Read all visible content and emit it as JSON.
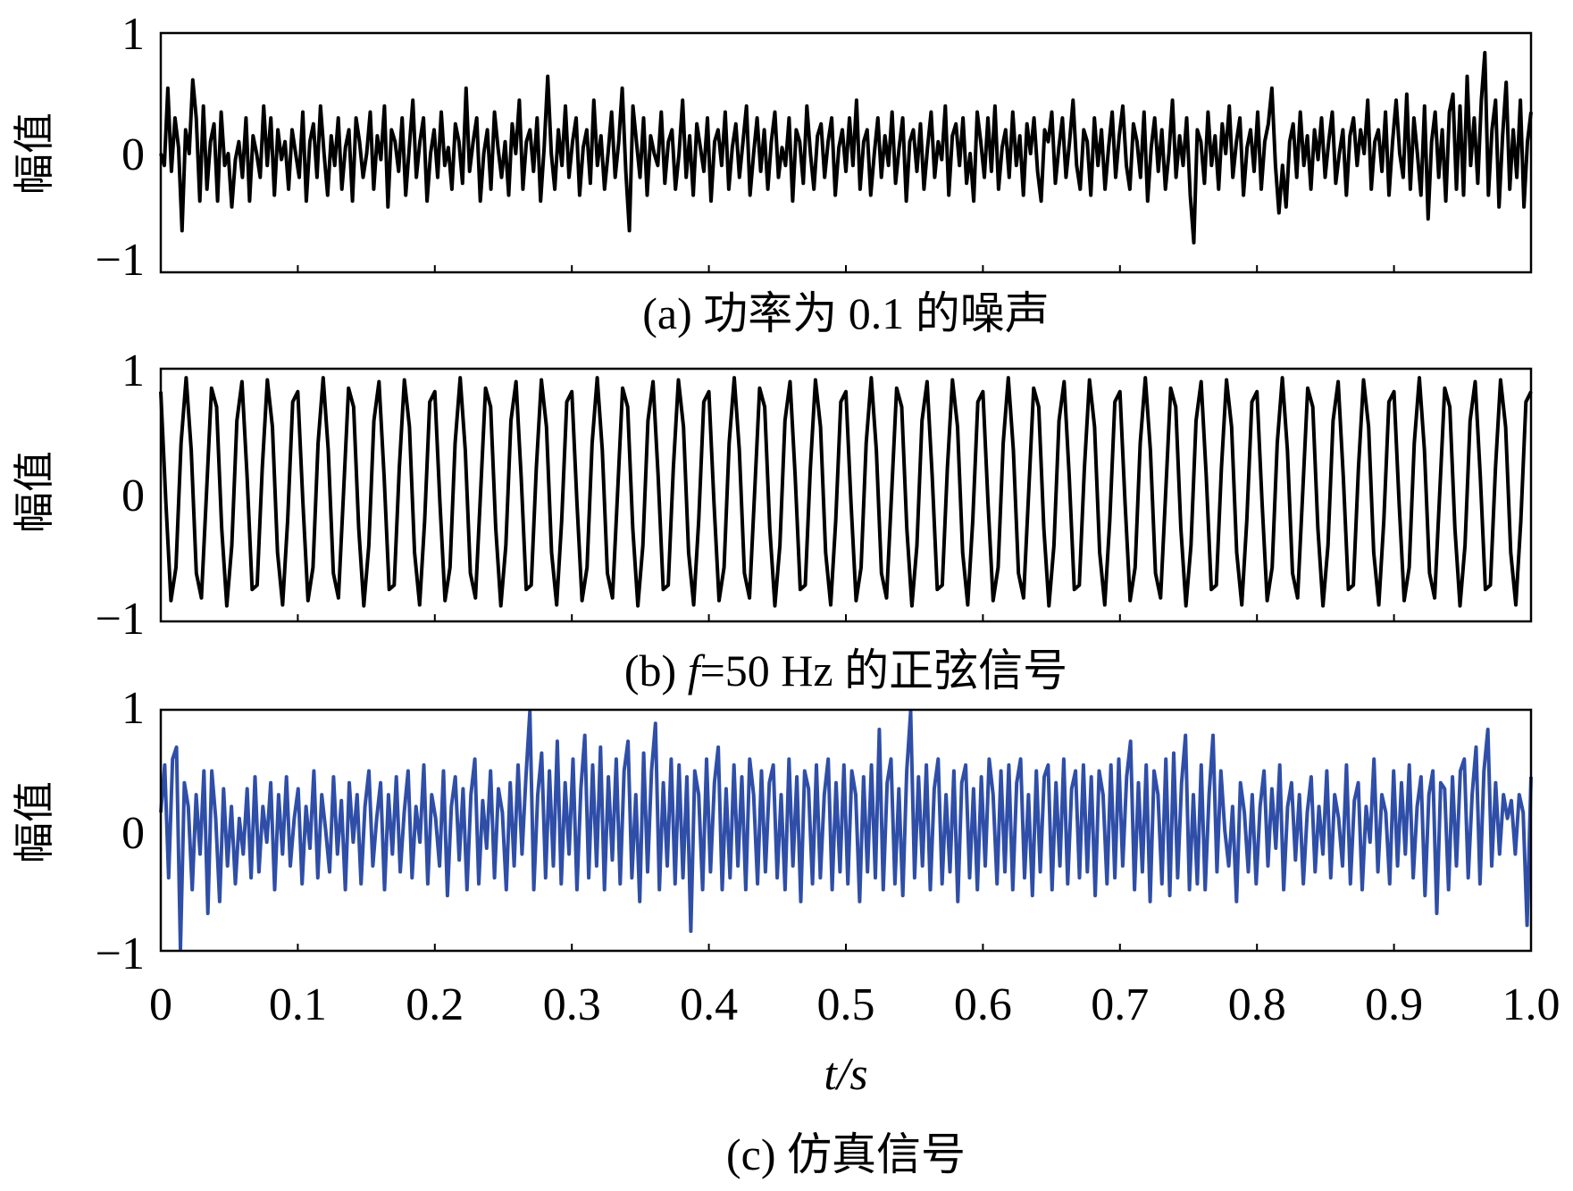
{
  "chart_data": [
    {
      "type": "line",
      "ylabel": "幅值",
      "caption": "(a) 功率为 0.1 的噪声",
      "xlim": [
        0,
        1.0
      ],
      "ylim": [
        -1,
        1
      ],
      "yticks": [
        "1",
        "0",
        "−1"
      ],
      "grid": false,
      "series": [
        {
          "color": "#000000",
          "x_start": 0,
          "x_step": 0.0025,
          "y": [
            0.0,
            -0.1,
            0.55,
            -0.15,
            0.3,
            0.05,
            -0.65,
            0.2,
            0.0,
            0.62,
            0.3,
            -0.4,
            0.4,
            -0.3,
            0.1,
            0.25,
            -0.4,
            0.35,
            -0.1,
            0.0,
            -0.45,
            -0.05,
            0.1,
            -0.2,
            0.3,
            -0.4,
            0.15,
            0.0,
            -0.2,
            0.4,
            -0.1,
            0.3,
            -0.35,
            0.2,
            -0.05,
            0.1,
            -0.3,
            0.2,
            0.0,
            -0.2,
            0.35,
            -0.4,
            0.1,
            0.25,
            -0.2,
            0.4,
            0.0,
            -0.35,
            0.15,
            -0.1,
            0.3,
            -0.3,
            0.05,
            0.2,
            -0.4,
            0.3,
            0.1,
            -0.2,
            0.0,
            0.35,
            -0.3,
            0.15,
            -0.05,
            0.4,
            -0.45,
            0.2,
            0.1,
            -0.15,
            0.3,
            -0.35,
            0.05,
            0.45,
            -0.2,
            0.1,
            0.3,
            -0.4,
            0.0,
            0.2,
            -0.2,
            0.35,
            -0.1,
            0.05,
            -0.3,
            0.25,
            0.1,
            -0.25,
            0.55,
            -0.15,
            0.1,
            0.3,
            -0.4,
            0.0,
            0.2,
            -0.3,
            0.35,
            0.05,
            -0.2,
            0.1,
            -0.35,
            0.25,
            0.0,
            0.45,
            -0.3,
            0.1,
            0.2,
            -0.15,
            0.3,
            -0.4,
            0.05,
            0.65,
            0.0,
            -0.3,
            0.2,
            -0.1,
            0.4,
            -0.2,
            0.1,
            0.3,
            -0.35,
            0.05,
            0.2,
            -0.25,
            0.45,
            -0.1,
            0.15,
            -0.3,
            0.0,
            0.35,
            -0.2,
            0.1,
            0.55,
            -0.15,
            -0.65,
            0.4,
            0.1,
            -0.2,
            0.3,
            -0.35,
            0.15,
            0.0,
            -0.1,
            0.35,
            -0.25,
            0.1,
            0.2,
            -0.3,
            0.0,
            0.45,
            -0.2,
            0.15,
            -0.35,
            0.25,
            0.05,
            -0.15,
            0.3,
            -0.4,
            0.1,
            0.2,
            -0.1,
            0.35,
            -0.3,
            0.05,
            0.25,
            -0.2,
            0.1,
            0.4,
            -0.35,
            0.0,
            0.3,
            -0.15,
            0.2,
            -0.3,
            0.1,
            0.35,
            -0.2,
            0.05,
            -0.1,
            0.3,
            -0.4,
            0.2,
            0.1,
            -0.25,
            0.4,
            0.0,
            -0.3,
            0.15,
            0.25,
            -0.2,
            0.1,
            0.3,
            -0.35,
            0.05,
            0.2,
            -0.15,
            0.3,
            -0.1,
            0.45,
            -0.3,
            0.1,
            0.2,
            -0.35,
            0.0,
            0.3,
            -0.2,
            0.15,
            -0.1,
            0.35,
            -0.25,
            0.05,
            0.3,
            -0.4,
            0.1,
            0.2,
            -0.15,
            0.25,
            -0.3,
            0.05,
            0.35,
            -0.2,
            0.1,
            -0.05,
            0.4,
            -0.35,
            0.15,
            0.25,
            -0.1,
            0.3,
            -0.25,
            0.0,
            -0.4,
            0.35,
            0.1,
            -0.2,
            0.3,
            -0.15,
            0.4,
            -0.3,
            0.05,
            0.2,
            -0.2,
            0.35,
            -0.1,
            0.15,
            -0.35,
            0.25,
            0.0,
            0.3,
            -0.15,
            -0.4,
            0.2,
            0.1,
            0.35,
            -0.25,
            0.05,
            0.3,
            -0.2,
            0.1,
            0.45,
            -0.1,
            -0.3,
            0.2,
            0.1,
            -0.35,
            0.3,
            -0.1,
            0.2,
            -0.3,
            0.05,
            0.35,
            -0.2,
            0.15,
            0.4,
            -0.1,
            -0.3,
            0.25,
            0.1,
            -0.2,
            0.35,
            -0.4,
            0.05,
            0.3,
            -0.15,
            0.2,
            -0.3,
            0.0,
            0.45,
            -0.2,
            0.15,
            -0.1,
            0.3,
            -0.35,
            -0.75,
            0.2,
            0.1,
            -0.25,
            0.35,
            -0.1,
            0.15,
            -0.3,
            0.25,
            0.0,
            0.4,
            -0.2,
            0.1,
            0.3,
            -0.35,
            0.05,
            0.2,
            -0.15,
            0.35,
            -0.3,
            0.1,
            0.25,
            0.55,
            -0.1,
            -0.5,
            -0.1,
            -0.45,
            0.1,
            0.25,
            -0.2,
            0.35,
            -0.1,
            0.15,
            -0.3,
            0.2,
            -0.05,
            0.3,
            -0.2,
            0.1,
            0.35,
            -0.25,
            0.0,
            0.2,
            -0.35,
            0.15,
            0.3,
            -0.1,
            0.2,
            0.0,
            0.45,
            -0.3,
            0.1,
            0.2,
            -0.15,
            0.35,
            -0.35,
            0.1,
            0.45,
            0.0,
            -0.2,
            0.5,
            -0.3,
            0.3,
            0.0,
            -0.35,
            0.4,
            -0.55,
            0.1,
            0.35,
            -0.2,
            0.2,
            -0.4,
            0.35,
            0.5,
            -0.3,
            0.4,
            -0.35,
            0.65,
            -0.1,
            0.3,
            -0.25,
            0.45,
            0.85,
            -0.35,
            0.2,
            0.45,
            -0.45,
            0.15,
            0.6,
            -0.3,
            0.2,
            -0.2,
            0.45,
            -0.45,
            0.1,
            0.35
          ]
        }
      ]
    },
    {
      "type": "line",
      "ylabel": "幅值",
      "caption_prefix": "(b)",
      "caption_var": "f",
      "caption_rest": "=50 Hz 的正弦信号",
      "xlim": [
        0,
        1.0
      ],
      "ylim": [
        -1,
        1
      ],
      "yticks": [
        "1",
        "0",
        "−1"
      ],
      "grid": false,
      "series": [
        {
          "color": "#000000",
          "function": "sine",
          "frequency_hz": 50,
          "amplitude": 1,
          "sample_rate_hz": 270
        }
      ]
    },
    {
      "type": "line",
      "ylabel": "幅值",
      "caption": "(c) 仿真信号",
      "xlabel": "t/s",
      "xlim": [
        0,
        1.0
      ],
      "ylim": [
        -1,
        1
      ],
      "yticks": [
        "1",
        "0",
        "−1"
      ],
      "xticks": [
        "0",
        "0.1",
        "0.2",
        "0.3",
        "0.4",
        "0.5",
        "0.6",
        "0.7",
        "0.8",
        "0.9",
        "1.0"
      ],
      "grid": false,
      "series": [
        {
          "color": "#2f4ea8",
          "combination": "(a) + (b)",
          "x_start": 0,
          "x_step": 0.0025,
          "y": [
            0.15,
            0.55,
            -0.4,
            0.6,
            0.7,
            -1.0,
            0.4,
            0.2,
            -0.5,
            0.3,
            -0.2,
            0.5,
            -0.7,
            0.5,
            0.1,
            -0.6,
            0.35,
            -0.3,
            0.2,
            -0.45,
            0.1,
            -0.2,
            0.35,
            -0.4,
            0.45,
            -0.35,
            0.2,
            -0.1,
            0.4,
            -0.5,
            0.3,
            -0.2,
            0.45,
            -0.3,
            0.1,
            0.35,
            -0.45,
            0.2,
            -0.15,
            0.5,
            -0.4,
            0.3,
            0.0,
            -0.35,
            0.45,
            -0.2,
            0.25,
            -0.5,
            0.4,
            -0.1,
            0.3,
            -0.45,
            0.2,
            0.5,
            -0.3,
            0.1,
            0.4,
            -0.5,
            0.3,
            -0.2,
            0.45,
            -0.35,
            0.15,
            0.5,
            -0.4,
            0.2,
            -0.1,
            0.55,
            -0.45,
            0.3,
            0.1,
            -0.3,
            0.5,
            -0.55,
            0.2,
            0.45,
            -0.25,
            0.35,
            -0.5,
            0.3,
            0.6,
            -0.45,
            0.25,
            -0.15,
            0.5,
            -0.4,
            0.35,
            0.15,
            -0.5,
            0.4,
            -0.3,
            0.55,
            -0.2,
            0.45,
            1.0,
            -0.5,
            0.3,
            0.65,
            -0.4,
            0.5,
            -0.3,
            0.75,
            -0.45,
            0.4,
            -0.2,
            0.6,
            -0.5,
            0.35,
            0.8,
            -0.4,
            0.55,
            -0.3,
            0.7,
            -0.5,
            0.45,
            -0.25,
            0.6,
            -0.45,
            0.5,
            0.75,
            -0.4,
            0.3,
            -0.6,
            0.65,
            -0.35,
            0.5,
            0.9,
            -0.5,
            0.4,
            -0.3,
            0.6,
            -0.45,
            0.55,
            -0.4,
            0.45,
            -0.85,
            0.5,
            0.3,
            -0.5,
            0.6,
            -0.35,
            0.4,
            0.7,
            -0.5,
            0.35,
            -0.4,
            0.55,
            -0.3,
            0.45,
            -0.5,
            0.6,
            0.3,
            -0.45,
            0.5,
            -0.35,
            0.4,
            0.55,
            -0.4,
            0.3,
            -0.5,
            0.6,
            -0.3,
            0.45,
            -0.6,
            0.5,
            0.35,
            -0.45,
            0.55,
            -0.4,
            0.3,
            0.6,
            -0.5,
            0.4,
            -0.35,
            0.55,
            -0.45,
            0.5,
            0.3,
            -0.6,
            0.45,
            -0.35,
            0.55,
            -0.4,
            0.85,
            -0.5,
            0.4,
            0.6,
            -0.45,
            0.35,
            -0.55,
            0.5,
            1.0,
            -0.4,
            0.45,
            -0.3,
            0.55,
            -0.5,
            0.35,
            0.6,
            -0.45,
            0.3,
            -0.35,
            0.5,
            -0.6,
            0.4,
            0.55,
            -0.4,
            0.35,
            -0.5,
            0.45,
            -0.3,
            0.6,
            0.3,
            -0.45,
            0.5,
            -0.35,
            0.55,
            -0.5,
            0.4,
            0.6,
            -0.4,
            0.3,
            -0.55,
            0.5,
            -0.35,
            0.45,
            0.55,
            -0.5,
            0.4,
            -0.3,
            0.6,
            -0.45,
            0.35,
            0.5,
            -0.4,
            0.55,
            -0.35,
            0.45,
            -0.55,
            0.5,
            0.3,
            -0.45,
            0.55,
            -0.4,
            0.6,
            -0.3,
            0.45,
            0.75,
            -0.5,
            0.4,
            -0.35,
            0.55,
            -0.6,
            0.5,
            0.3,
            -0.45,
            0.6,
            -0.55,
            0.65,
            -0.4,
            0.4,
            0.8,
            -0.5,
            0.3,
            -0.45,
            0.55,
            -0.5,
            0.3,
            0.8,
            -0.35,
            0.5,
            0.0,
            -0.3,
            0.2,
            -0.6,
            0.4,
            0.15,
            -0.35,
            0.3,
            -0.45,
            0.2,
            0.5,
            -0.3,
            0.35,
            -0.15,
            0.55,
            -0.5,
            0.2,
            0.4,
            -0.25,
            0.3,
            -0.45,
            0.15,
            0.45,
            -0.35,
            0.2,
            -0.2,
            0.5,
            -0.4,
            0.3,
            0.1,
            -0.3,
            0.55,
            -0.45,
            0.25,
            0.4,
            -0.5,
            0.2,
            -0.1,
            0.6,
            -0.35,
            0.3,
            0.15,
            -0.45,
            0.5,
            -0.3,
            0.4,
            -0.2,
            0.55,
            -0.4,
            0.2,
            0.45,
            -0.55,
            0.3,
            0.5,
            -0.7,
            0.4,
            0.35,
            -0.5,
            0.45,
            -0.3,
            0.5,
            0.6,
            -0.4,
            0.3,
            0.7,
            -0.45,
            0.5,
            0.85,
            -0.3,
            0.4,
            -0.2,
            0.3,
            0.1,
            0.25,
            -0.2,
            0.3,
            0.15,
            -0.8,
            0.45
          ]
        }
      ]
    }
  ]
}
